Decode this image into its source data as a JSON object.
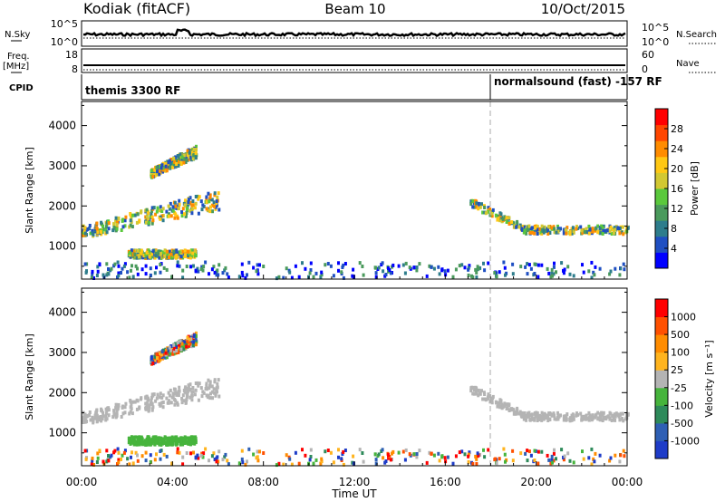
{
  "header": {
    "station": "Kodiak (fitACF)",
    "beam": "Beam 10",
    "date": "10/Oct/2015"
  },
  "noise_panel": {
    "left_label": "N.Sky",
    "right_label": "N.Search",
    "left_ticks": [
      "10^5",
      "10^0"
    ],
    "right_ticks": [
      "10^5",
      "10^0"
    ]
  },
  "freq_panel": {
    "left_label_1": "Freq.",
    "left_label_2": "[MHz]",
    "left_ticks": [
      "18",
      "8"
    ],
    "right_label": "Nave",
    "right_ticks": [
      "60",
      "0"
    ]
  },
  "cpid_panel": {
    "label": "CPID",
    "programs": [
      "themis 3300 RF",
      "normalsound (fast) -157 RF"
    ]
  },
  "x_axis": {
    "title": "Time UT",
    "tick_labels": [
      "00:00",
      "04:00",
      "08:00",
      "12:00",
      "16:00",
      "20:00",
      "00:00"
    ]
  },
  "power_colorbar": {
    "label": "Power [dB]",
    "tick_labels": [
      "28",
      "24",
      "20",
      "16",
      "12",
      "8",
      "4"
    ],
    "colors": [
      "#0000ff",
      "#1f4fc2",
      "#2e7d8c",
      "#4a9a5c",
      "#5ac83c",
      "#d2c832",
      "#ffc814",
      "#ff8c00",
      "#ff4600",
      "#ff0000"
    ]
  },
  "velocity_colorbar": {
    "label": "Velocity [m s⁻¹]",
    "tick_labels": [
      "1000",
      "500",
      "100",
      "25",
      "-25",
      "-100",
      "-500",
      "-1000"
    ],
    "colors": [
      "#1e3cc8",
      "#2e5fb4",
      "#2e8a5a",
      "#46b43c",
      "#b4b4b4",
      "#ffb41e",
      "#ff8c00",
      "#ff5000",
      "#ff0000"
    ]
  },
  "chart_data": [
    {
      "type": "heatmap",
      "title": "",
      "xlabel": "",
      "ylabel": "Slant Range [km]",
      "y_tick_labels": [
        "1000",
        "2000",
        "3000",
        "4000"
      ],
      "ylim": [
        180,
        4600
      ],
      "xlim_hours": [
        0,
        24
      ],
      "cpid_switch_time": "18:00",
      "echo_regions": [
        {
          "region": "lower band",
          "start": "00:00",
          "end": "06:00",
          "range_km": [
            1300,
            2400
          ]
        },
        {
          "region": "upper band",
          "start": "03:00",
          "end": "05:00",
          "range_km": [
            2700,
            3500
          ]
        },
        {
          "region": "near-range",
          "start": "02:00",
          "end": "05:00",
          "range_km": [
            700,
            900
          ]
        },
        {
          "region": "ground scatter",
          "start": "00:00",
          "end": "24:00",
          "range_km": [
            200,
            600
          ]
        },
        {
          "region": "evening band",
          "start": "17:00",
          "end": "24:00",
          "range_km": [
            1200,
            2200
          ]
        }
      ]
    },
    {
      "type": "heatmap",
      "title": "",
      "xlabel": "Time UT",
      "ylabel": "Slant Range [km]",
      "y_tick_labels": [
        "1000",
        "2000",
        "3000",
        "4000"
      ],
      "ylim": [
        180,
        4600
      ],
      "xlim_hours": [
        0,
        24
      ],
      "cpid_switch_time": "18:00"
    }
  ]
}
